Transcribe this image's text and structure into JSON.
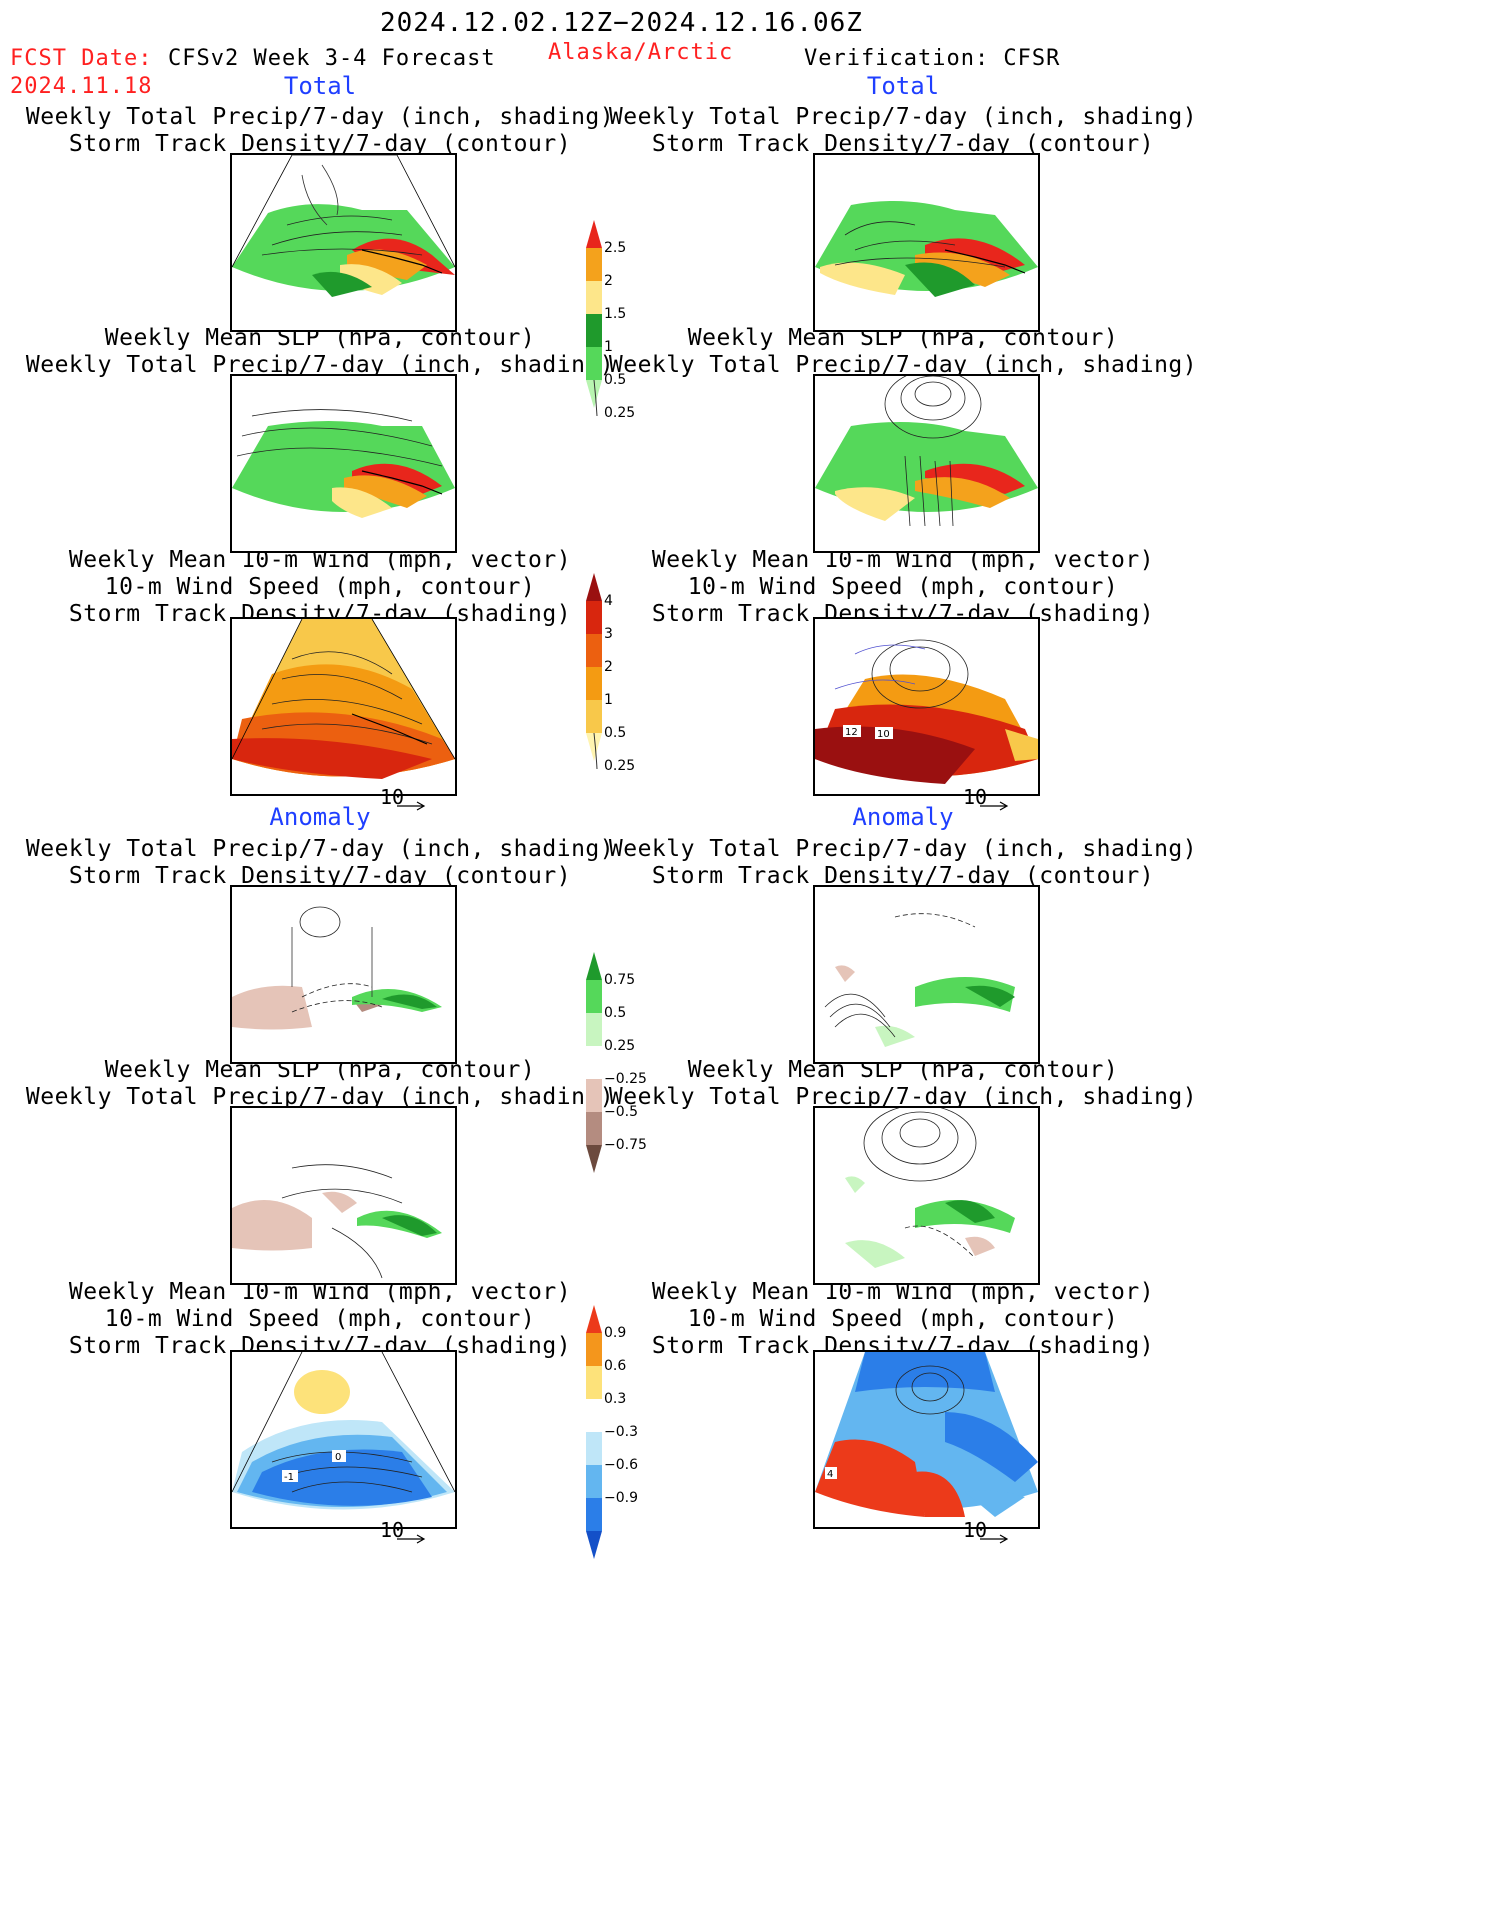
{
  "header": {
    "period": "2024.12.02.12Z−2024.12.16.06Z",
    "fcst_label": "FCST Date:",
    "fcst_date": "2024.11.18",
    "model_title": "CFSv2 Week 3-4 Forecast",
    "region": "Alaska/Arctic",
    "verification": "Verification: CFSR"
  },
  "sections": {
    "total": "Total",
    "anomaly": "Anomaly"
  },
  "panel_titles": {
    "precip_storm": [
      "Weekly Total Precip/7-day (inch, shading)",
      "Storm Track Density/7-day (contour)"
    ],
    "slp_precip": [
      "Weekly Mean SLP (hPa, contour)",
      "Weekly Total Precip/7-day (inch, shading)"
    ],
    "wind_storm": [
      "Weekly Mean 10-m Wind (mph, vector)",
      "10-m Wind Speed (mph, contour)",
      "Storm Track Density/7-day (shading)"
    ]
  },
  "vector_scale": "10",
  "colorbars": {
    "precip_total": {
      "labels": [
        "2.5",
        "2",
        "1.5",
        "1",
        "0.5",
        "0.25"
      ],
      "colors": [
        "#e8261c",
        "#f4a21c",
        "#fde68a",
        "#1f9a2c",
        "#55d85a",
        "#b8f4b0"
      ]
    },
    "storm_total": {
      "labels": [
        "4",
        "3",
        "2",
        "1",
        "0.5",
        "0.25"
      ],
      "colors": [
        "#9a1010",
        "#d8260e",
        "#ec6010",
        "#f49b12",
        "#f8c84a",
        "#fff4b0"
      ]
    },
    "precip_anom": {
      "labels": [
        "0.75",
        "0.5",
        "0.25",
        "−0.25",
        "−0.5",
        "−0.75"
      ],
      "colors": [
        "#1f9a2c",
        "#55d85a",
        "#c8f5c0",
        "#ffffff",
        "#e5c4b8",
        "#b48c80",
        "#6c4a3e"
      ]
    },
    "storm_anom": {
      "labels": [
        "0.9",
        "0.6",
        "0.3",
        "−0.3",
        "−0.6",
        "−0.9"
      ],
      "colors": [
        "#ec3a1a",
        "#f4961c",
        "#fde27a",
        "#ffffff",
        "#bfe6f8",
        "#63b6f0",
        "#2b7ee8",
        "#1450c8"
      ]
    }
  },
  "contour_labels": {
    "wind_total_verif": [
      "12",
      "10"
    ],
    "wind_anom_fcst": [
      "-1",
      "0"
    ],
    "wind_anom_verif": [
      "4"
    ]
  }
}
